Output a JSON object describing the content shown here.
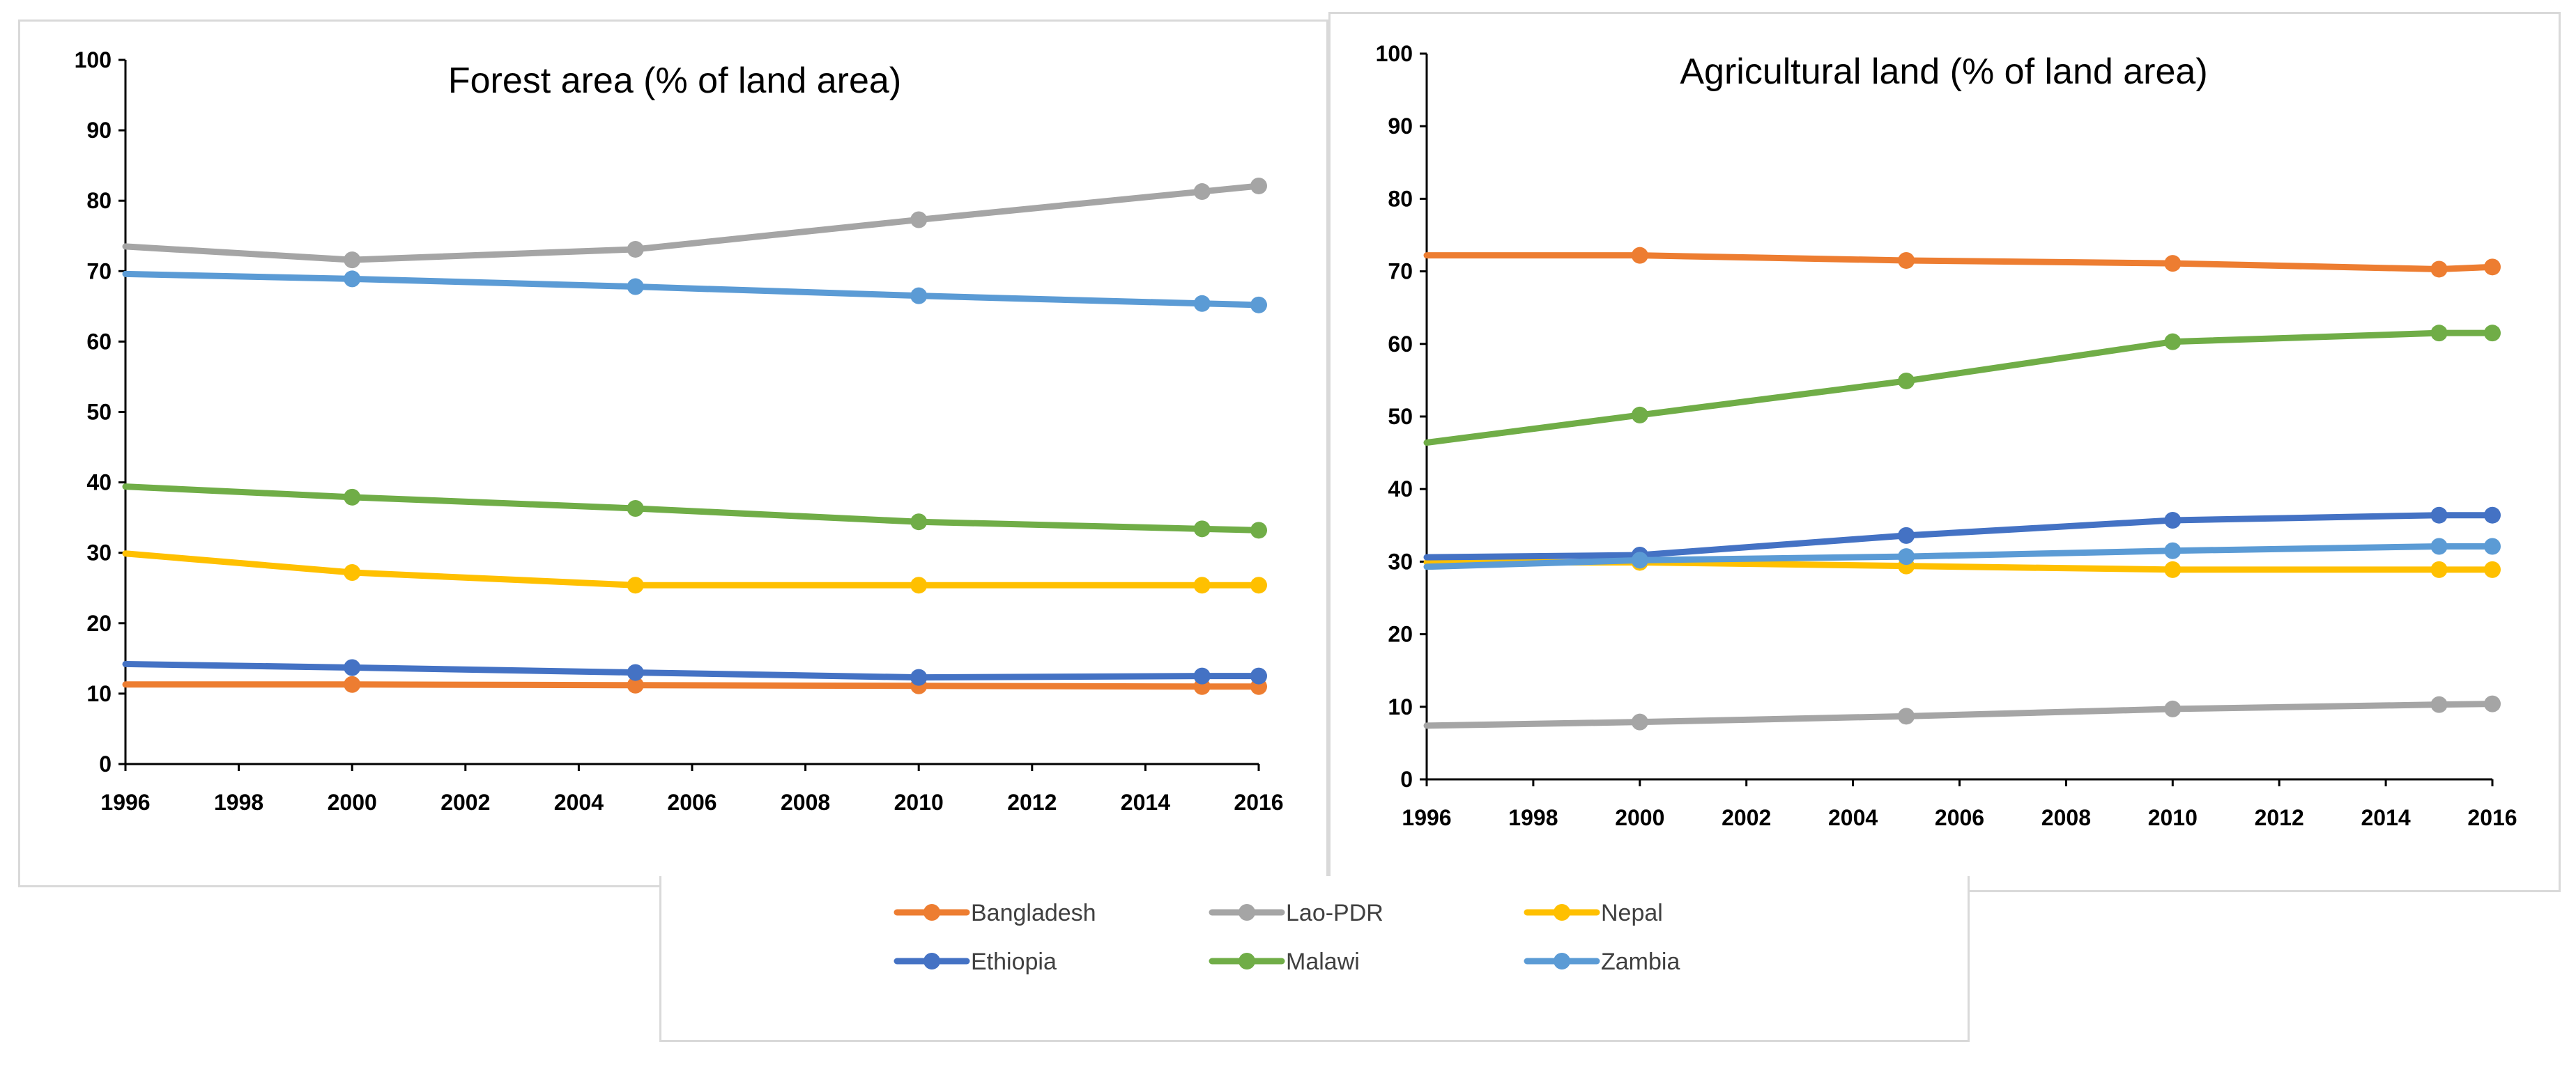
{
  "chart_data": [
    {
      "type": "line",
      "title": "Forest area (% of land  area)",
      "xlim": [
        1996,
        2016
      ],
      "ylim": [
        0,
        100
      ],
      "xticks": [
        1996,
        1998,
        2000,
        2002,
        2004,
        2006,
        2008,
        2010,
        2012,
        2014,
        2016
      ],
      "yticks": [
        0,
        10,
        20,
        30,
        40,
        50,
        60,
        70,
        80,
        90,
        100
      ],
      "x": [
        1996,
        2000,
        2005,
        2010,
        2015,
        2016
      ],
      "series": [
        {
          "name": "Bangladesh",
          "color": "#ed7d31",
          "values": [
            11.3,
            11.3,
            11.2,
            11.1,
            11.0,
            11.0
          ]
        },
        {
          "name": "Lao-PDR",
          "color": "#a5a5a5",
          "values": [
            73.5,
            71.6,
            73.1,
            77.3,
            81.3,
            82.1
          ]
        },
        {
          "name": "Nepal",
          "color": "#ffc000",
          "values": [
            29.9,
            27.2,
            25.4,
            25.4,
            25.4,
            25.4
          ]
        },
        {
          "name": "Ethiopia",
          "color": "#4472c4",
          "values": [
            14.2,
            13.7,
            13.0,
            12.3,
            12.5,
            12.5
          ]
        },
        {
          "name": "Malawi",
          "color": "#70ad47",
          "values": [
            39.4,
            37.9,
            36.3,
            34.4,
            33.4,
            33.2
          ]
        },
        {
          "name": "Zambia",
          "color": "#5b9bd5",
          "values": [
            69.6,
            68.9,
            67.8,
            66.5,
            65.4,
            65.2
          ]
        }
      ]
    },
    {
      "type": "line",
      "title": "Agricultural land (% of land  area)",
      "xlim": [
        1996,
        2016
      ],
      "ylim": [
        0,
        100
      ],
      "xticks": [
        1996,
        1998,
        2000,
        2002,
        2004,
        2006,
        2008,
        2010,
        2012,
        2014,
        2016
      ],
      "yticks": [
        0,
        10,
        20,
        30,
        40,
        50,
        60,
        70,
        80,
        90,
        100
      ],
      "x": [
        1996,
        2000,
        2005,
        2010,
        2015,
        2016
      ],
      "series": [
        {
          "name": "Bangladesh",
          "color": "#ed7d31",
          "values": [
            72.2,
            72.2,
            71.5,
            71.1,
            70.3,
            70.6
          ]
        },
        {
          "name": "Lao-PDR",
          "color": "#a5a5a5",
          "values": [
            7.4,
            7.9,
            8.7,
            9.7,
            10.3,
            10.4
          ]
        },
        {
          "name": "Nepal",
          "color": "#ffc000",
          "values": [
            29.9,
            29.9,
            29.4,
            28.9,
            28.9,
            28.9
          ]
        },
        {
          "name": "Ethiopia",
          "color": "#4472c4",
          "values": [
            30.6,
            30.9,
            33.6,
            35.7,
            36.4,
            36.4
          ]
        },
        {
          "name": "Malawi",
          "color": "#70ad47",
          "values": [
            46.4,
            50.2,
            54.9,
            60.3,
            61.5,
            61.5
          ]
        },
        {
          "name": "Zambia",
          "color": "#5b9bd5",
          "values": [
            29.3,
            30.2,
            30.7,
            31.5,
            32.1,
            32.1
          ]
        }
      ]
    }
  ],
  "legend": [
    {
      "label": "Bangladesh",
      "color": "#ed7d31"
    },
    {
      "label": "Lao-PDR",
      "color": "#a5a5a5"
    },
    {
      "label": "Nepal",
      "color": "#ffc000"
    },
    {
      "label": "Ethiopia",
      "color": "#4472c4"
    },
    {
      "label": "Malawi",
      "color": "#70ad47"
    },
    {
      "label": "Zambia",
      "color": "#5b9bd5"
    }
  ]
}
